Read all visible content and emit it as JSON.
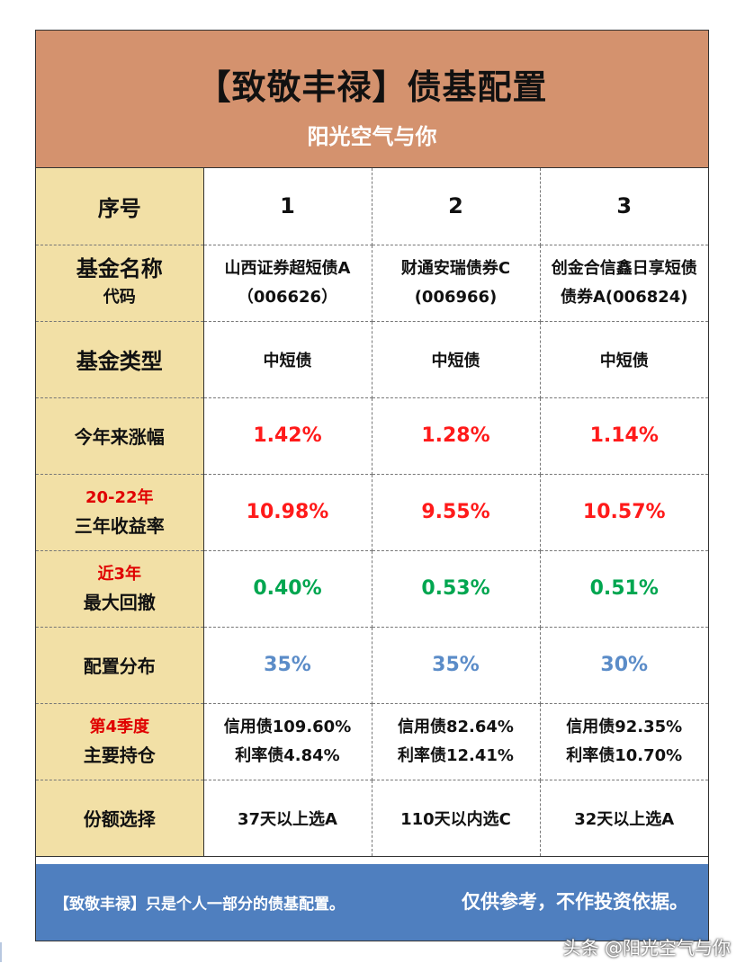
{
  "header": {
    "title": "【致敬丰禄】债基配置",
    "subtitle": "阳光空气与你"
  },
  "rows": {
    "seq": {
      "label": "序号",
      "values": [
        "1",
        "2",
        "3"
      ]
    },
    "name": {
      "label": "基金名称",
      "label_sub": "代码",
      "values": [
        {
          "line1": "山西证券超短债A",
          "line2": "（006626）"
        },
        {
          "line1": "财通安瑞债券C",
          "line2": "(006966)"
        },
        {
          "line1": "创金合信鑫日享短债",
          "line2": "债券A(006824)"
        }
      ]
    },
    "type": {
      "label": "基金类型",
      "values": [
        "中短债",
        "中短债",
        "中短债"
      ]
    },
    "ytd": {
      "label": "今年来涨幅",
      "values": [
        "1.42%",
        "1.28%",
        "1.14%"
      ]
    },
    "three_year": {
      "label_top": "20-22年",
      "label": "三年收益率",
      "values": [
        "10.98%",
        "9.55%",
        "10.57%"
      ]
    },
    "drawdown": {
      "label_top": "近3年",
      "label": "最大回撤",
      "values": [
        "0.40%",
        "0.53%",
        "0.51%"
      ]
    },
    "allocation": {
      "label": "配置分布",
      "values": [
        "35%",
        "35%",
        "30%"
      ]
    },
    "holdings": {
      "label_top": "第4季度",
      "label": "主要持仓",
      "values": [
        {
          "line1": "信用债109.60%",
          "line2": "利率债4.84%"
        },
        {
          "line1": "信用债82.64%",
          "line2": "利率债12.41%"
        },
        {
          "line1": "信用债92.35%",
          "line2": "利率债10.70%"
        }
      ]
    },
    "share": {
      "label": "份额选择",
      "values": [
        "37天以上选A",
        "110天以内选C",
        "32天以上选A"
      ]
    }
  },
  "footer": {
    "left": "【致敬丰禄】只是个人一部分的债基配置。",
    "right": "仅供参考，不作投资依据。"
  },
  "watermark": "头条 @阳光空气与你",
  "colors": {
    "header_bg": "#d4926e",
    "label_bg": "#f2e0a6",
    "footer_bg": "#4f7fbf",
    "red": "#ff1a1a",
    "green": "#00a650",
    "blue": "#5b8cc8"
  }
}
